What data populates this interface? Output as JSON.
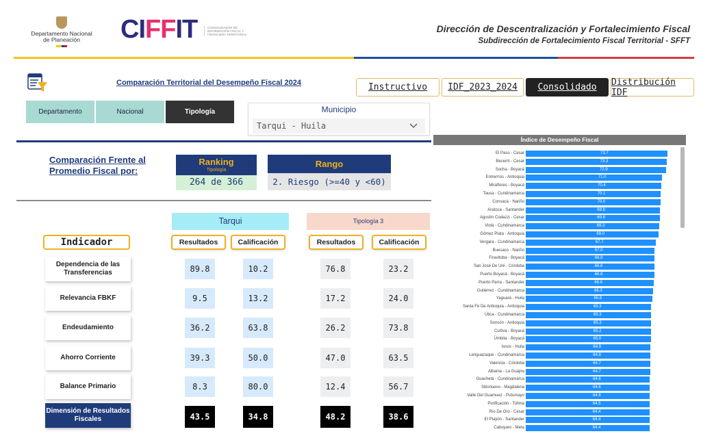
{
  "header": {
    "dnp_logo_text": "Departamento Nacional de Planeación",
    "ciffit_logo": "CIFFIT",
    "ciffit_tagline": "CONSOLIDADOR DE INFORMACIÓN FISCAL Y FINANCIERA TERRITORIAL",
    "title": "Dirección de Descentralización y Fortalecimiento Fiscal",
    "subtitle": "Subdirección de Fortalecimiento Fiscal Territorial - SFFT"
  },
  "report_title": "Comparación Territorial del Desempeño Fiscal 2024",
  "nav": {
    "buttons": [
      "Instructivo",
      "IDF_2023_2024",
      "Consolidado",
      "Distribución IDF"
    ],
    "active": "Consolidado"
  },
  "segments": [
    "Departamento",
    "Nacional",
    "Tipología"
  ],
  "segment_active": "Tipología",
  "municipio_slicer": {
    "label": "Municipio",
    "value": "Tarqui - Huila"
  },
  "comparison_title": "Comparación Frente al Promedio Fiscal por:",
  "ranking": {
    "title": "Ranking",
    "subtitle": "Tipología",
    "value": "264 de 366"
  },
  "rango": {
    "title": "Rango",
    "value": "2. Riesgo (>=40 y <60)"
  },
  "table": {
    "group_left": "Tarqui",
    "group_right": "Tipología 3",
    "indicator_header": "Indicador",
    "col_headers": [
      "Resultados",
      "Calificación",
      "Resultados",
      "Calificación"
    ],
    "rows": [
      {
        "label": "Dependencia de las Transferencias",
        "values": [
          "89.8",
          "10.2",
          "76.8",
          "23.2"
        ]
      },
      {
        "label": "Relevancia FBKF",
        "values": [
          "9.5",
          "13.2",
          "17.2",
          "24.0"
        ]
      },
      {
        "label": "Endeudamiento",
        "values": [
          "36.2",
          "63.8",
          "26.2",
          "73.8"
        ]
      },
      {
        "label": "Ahorro Corriente",
        "values": [
          "39.3",
          "50.0",
          "47.0",
          "63.5"
        ]
      },
      {
        "label": "Balance Primario",
        "values": [
          "8.3",
          "80.0",
          "12.4",
          "56.7"
        ]
      },
      {
        "label": "Dimensión de Resultados Fiscales",
        "values": [
          "43.5",
          "34.8",
          "48.2",
          "38.6"
        ]
      }
    ]
  },
  "colors": {
    "bar": "#1e90ff",
    "navy": "#1f3b7a",
    "gold": "#f0b020"
  },
  "chart_data": {
    "type": "bar",
    "orientation": "horizontal",
    "title": "Índice de Desempeño Fiscal",
    "xlim": [
      0,
      100
    ],
    "categories": [
      "El Paso - Cesar",
      "Becerril - Cesar",
      "Socha - Boyacá",
      "Entrerríos - Antioquia",
      "Miraflores - Boyacá",
      "Tausa - Cundinamarca",
      "Consacá - Nariño",
      "Aratoca - Santander",
      "Agustín Codazzi - Cesar",
      "Viotá - Cundinamarca",
      "Gómez Plata - Antioquia",
      "Vergara - Cundinamarca",
      "Buesaco - Nariño",
      "Firavitoba - Boyacá",
      "San José De Uré - Córdoba",
      "Puerto Boyacá - Boyacá",
      "Puerto Parra - Santander",
      "Gutiérrez - Cundinamarca",
      "Yaguará - Huila",
      "Santa Fé De Antioquia - Antioquia",
      "Útica - Cundinamarca",
      "Sonsón - Antioquia",
      "Cuítiva - Boyacá",
      "Úmbita - Boyacá",
      "Isnos - Huila",
      "Lenguazaque - Cundinamarca",
      "Valencia - Córdoba",
      "Albania - La Guajira",
      "Guachetá - Cundinamarca",
      "Sitionuevo - Magdalena",
      "Valle Del Guamuez - Putumayo",
      "Purificación - Tolima",
      "Río De Oro - Cesar",
      "El Playón - Santander",
      "Cabuyaro - Meta"
    ],
    "values": [
      73.7,
      73.3,
      72.9,
      71.0,
      70.4,
      70.1,
      70.0,
      69.8,
      69.8,
      69.3,
      69.0,
      67.7,
      67.0,
      66.9,
      66.8,
      66.8,
      66.6,
      66.3,
      65.8,
      65.3,
      65.3,
      65.3,
      65.2,
      65.0,
      64.9,
      64.8,
      64.7,
      64.7,
      64.6,
      64.6,
      64.6,
      64.5,
      64.4,
      64.4,
      64.4
    ]
  }
}
